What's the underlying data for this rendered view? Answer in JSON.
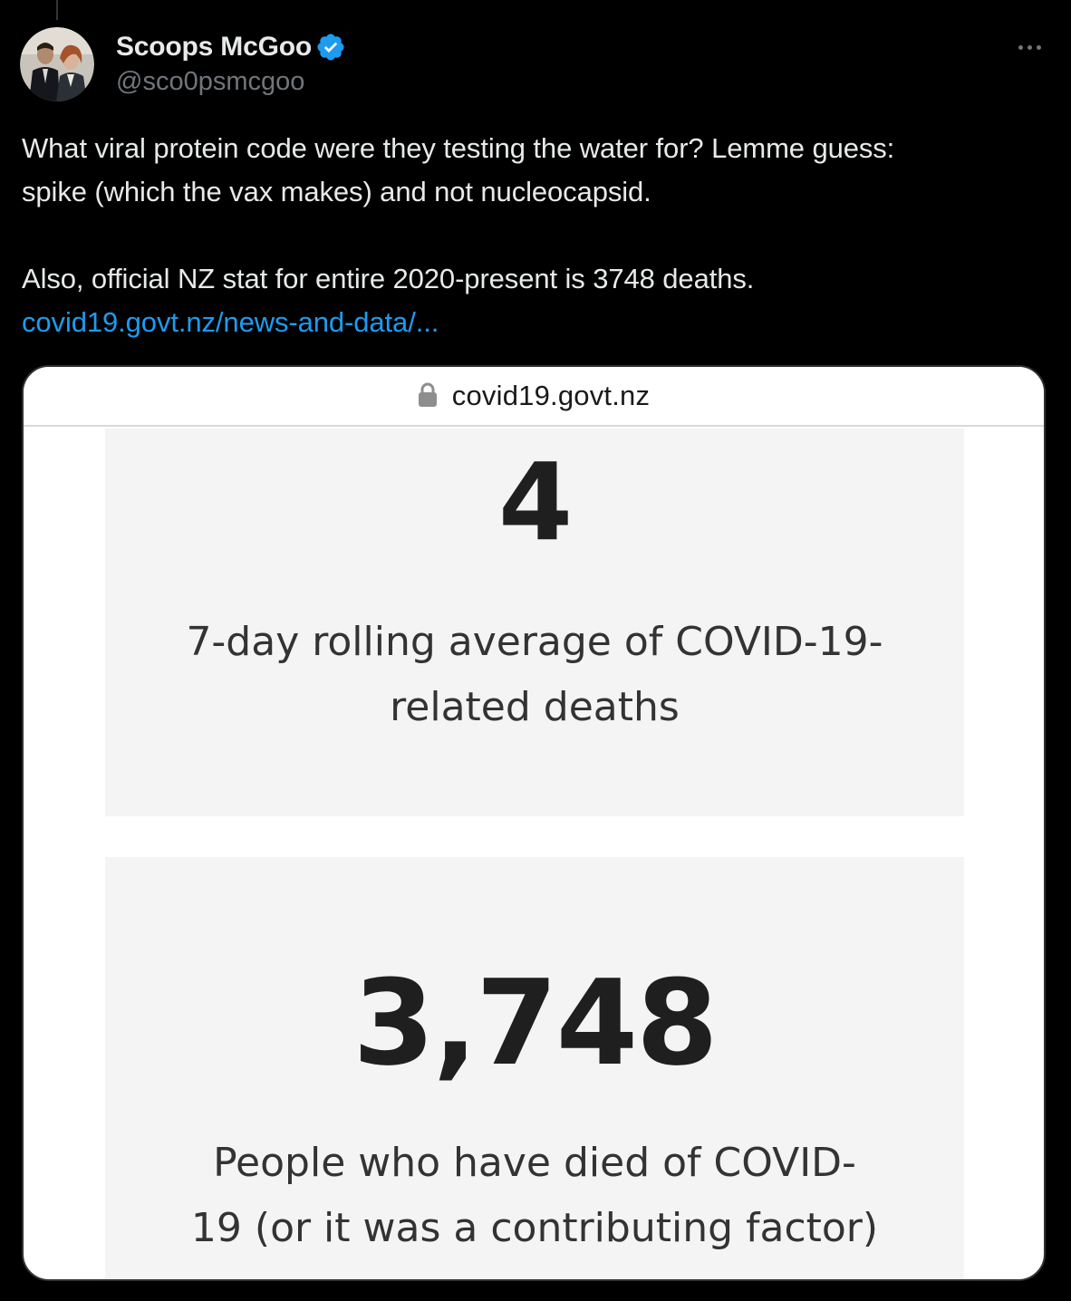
{
  "tweet": {
    "author": {
      "display_name": "Scoops McGoo",
      "handle": "@sco0psmcgoo",
      "verified": true,
      "avatar_icon": "avatar-photo"
    },
    "more_icon": "more-horizontal-icon",
    "text": {
      "line1": "What viral protein code were they testing the water for? Lemme guess:",
      "line2": "spike (which the vax makes) and not nucleocapsid.",
      "line3": "Also, official NZ stat for entire 2020-present is 3748 deaths.",
      "link": "covid19.govt.nz/news-and-data/..."
    },
    "media": {
      "url_bar": {
        "lock_icon": "lock-icon",
        "domain": "covid19.govt.nz"
      },
      "stats": [
        {
          "value": "4",
          "label_line1": "7-day rolling average of COVID-19-",
          "label_line2": "related deaths"
        },
        {
          "value": "3,748",
          "label_line1": "People who have died of COVID-",
          "label_line2": "19 (or it was a contributing factor)"
        }
      ]
    }
  },
  "colors": {
    "background": "#000000",
    "text_primary": "#e7e9ea",
    "text_secondary": "#71767b",
    "link": "#1d9bf0",
    "verified_badge": "#1d9bf0",
    "card_bg": "#ffffff",
    "stat_box_bg": "#f4f4f4"
  }
}
